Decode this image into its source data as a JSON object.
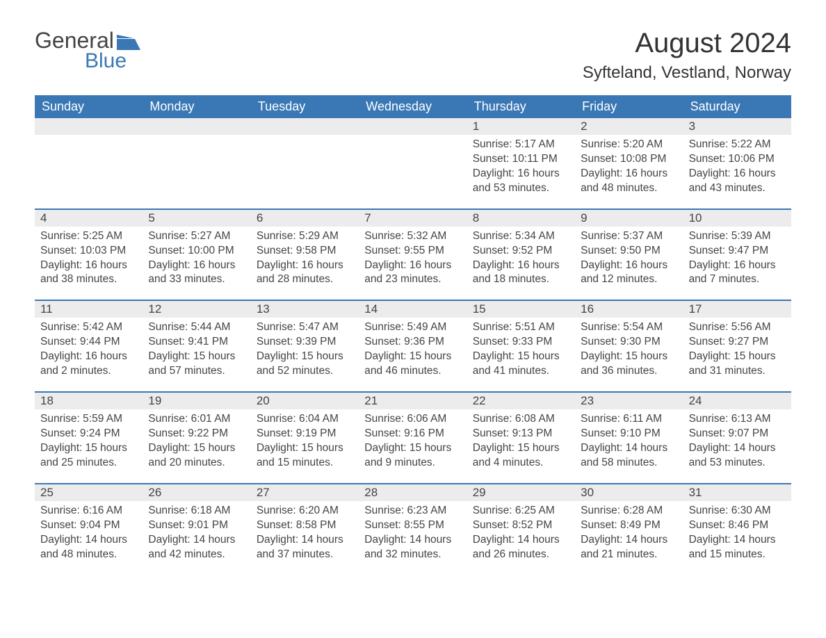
{
  "logo": {
    "text_general": "General",
    "text_blue": "Blue",
    "flag_color": "#3a78b5"
  },
  "header": {
    "month_title": "August 2024",
    "location": "Syfteland, Vestland, Norway"
  },
  "colors": {
    "header_bg": "#3a78b5",
    "daynum_bg": "#ececec",
    "text": "#444444",
    "white": "#ffffff"
  },
  "typography": {
    "month_title_fontsize": 40,
    "location_fontsize": 24,
    "weekday_fontsize": 18,
    "daynum_fontsize": 17,
    "body_fontsize": 15.5
  },
  "weekdays": [
    "Sunday",
    "Monday",
    "Tuesday",
    "Wednesday",
    "Thursday",
    "Friday",
    "Saturday"
  ],
  "weeks": [
    [
      {
        "day": "",
        "sunrise": "",
        "sunset": "",
        "daylight": ""
      },
      {
        "day": "",
        "sunrise": "",
        "sunset": "",
        "daylight": ""
      },
      {
        "day": "",
        "sunrise": "",
        "sunset": "",
        "daylight": ""
      },
      {
        "day": "",
        "sunrise": "",
        "sunset": "",
        "daylight": ""
      },
      {
        "day": "1",
        "sunrise": "Sunrise: 5:17 AM",
        "sunset": "Sunset: 10:11 PM",
        "daylight": "Daylight: 16 hours and 53 minutes."
      },
      {
        "day": "2",
        "sunrise": "Sunrise: 5:20 AM",
        "sunset": "Sunset: 10:08 PM",
        "daylight": "Daylight: 16 hours and 48 minutes."
      },
      {
        "day": "3",
        "sunrise": "Sunrise: 5:22 AM",
        "sunset": "Sunset: 10:06 PM",
        "daylight": "Daylight: 16 hours and 43 minutes."
      }
    ],
    [
      {
        "day": "4",
        "sunrise": "Sunrise: 5:25 AM",
        "sunset": "Sunset: 10:03 PM",
        "daylight": "Daylight: 16 hours and 38 minutes."
      },
      {
        "day": "5",
        "sunrise": "Sunrise: 5:27 AM",
        "sunset": "Sunset: 10:00 PM",
        "daylight": "Daylight: 16 hours and 33 minutes."
      },
      {
        "day": "6",
        "sunrise": "Sunrise: 5:29 AM",
        "sunset": "Sunset: 9:58 PM",
        "daylight": "Daylight: 16 hours and 28 minutes."
      },
      {
        "day": "7",
        "sunrise": "Sunrise: 5:32 AM",
        "sunset": "Sunset: 9:55 PM",
        "daylight": "Daylight: 16 hours and 23 minutes."
      },
      {
        "day": "8",
        "sunrise": "Sunrise: 5:34 AM",
        "sunset": "Sunset: 9:52 PM",
        "daylight": "Daylight: 16 hours and 18 minutes."
      },
      {
        "day": "9",
        "sunrise": "Sunrise: 5:37 AM",
        "sunset": "Sunset: 9:50 PM",
        "daylight": "Daylight: 16 hours and 12 minutes."
      },
      {
        "day": "10",
        "sunrise": "Sunrise: 5:39 AM",
        "sunset": "Sunset: 9:47 PM",
        "daylight": "Daylight: 16 hours and 7 minutes."
      }
    ],
    [
      {
        "day": "11",
        "sunrise": "Sunrise: 5:42 AM",
        "sunset": "Sunset: 9:44 PM",
        "daylight": "Daylight: 16 hours and 2 minutes."
      },
      {
        "day": "12",
        "sunrise": "Sunrise: 5:44 AM",
        "sunset": "Sunset: 9:41 PM",
        "daylight": "Daylight: 15 hours and 57 minutes."
      },
      {
        "day": "13",
        "sunrise": "Sunrise: 5:47 AM",
        "sunset": "Sunset: 9:39 PM",
        "daylight": "Daylight: 15 hours and 52 minutes."
      },
      {
        "day": "14",
        "sunrise": "Sunrise: 5:49 AM",
        "sunset": "Sunset: 9:36 PM",
        "daylight": "Daylight: 15 hours and 46 minutes."
      },
      {
        "day": "15",
        "sunrise": "Sunrise: 5:51 AM",
        "sunset": "Sunset: 9:33 PM",
        "daylight": "Daylight: 15 hours and 41 minutes."
      },
      {
        "day": "16",
        "sunrise": "Sunrise: 5:54 AM",
        "sunset": "Sunset: 9:30 PM",
        "daylight": "Daylight: 15 hours and 36 minutes."
      },
      {
        "day": "17",
        "sunrise": "Sunrise: 5:56 AM",
        "sunset": "Sunset: 9:27 PM",
        "daylight": "Daylight: 15 hours and 31 minutes."
      }
    ],
    [
      {
        "day": "18",
        "sunrise": "Sunrise: 5:59 AM",
        "sunset": "Sunset: 9:24 PM",
        "daylight": "Daylight: 15 hours and 25 minutes."
      },
      {
        "day": "19",
        "sunrise": "Sunrise: 6:01 AM",
        "sunset": "Sunset: 9:22 PM",
        "daylight": "Daylight: 15 hours and 20 minutes."
      },
      {
        "day": "20",
        "sunrise": "Sunrise: 6:04 AM",
        "sunset": "Sunset: 9:19 PM",
        "daylight": "Daylight: 15 hours and 15 minutes."
      },
      {
        "day": "21",
        "sunrise": "Sunrise: 6:06 AM",
        "sunset": "Sunset: 9:16 PM",
        "daylight": "Daylight: 15 hours and 9 minutes."
      },
      {
        "day": "22",
        "sunrise": "Sunrise: 6:08 AM",
        "sunset": "Sunset: 9:13 PM",
        "daylight": "Daylight: 15 hours and 4 minutes."
      },
      {
        "day": "23",
        "sunrise": "Sunrise: 6:11 AM",
        "sunset": "Sunset: 9:10 PM",
        "daylight": "Daylight: 14 hours and 58 minutes."
      },
      {
        "day": "24",
        "sunrise": "Sunrise: 6:13 AM",
        "sunset": "Sunset: 9:07 PM",
        "daylight": "Daylight: 14 hours and 53 minutes."
      }
    ],
    [
      {
        "day": "25",
        "sunrise": "Sunrise: 6:16 AM",
        "sunset": "Sunset: 9:04 PM",
        "daylight": "Daylight: 14 hours and 48 minutes."
      },
      {
        "day": "26",
        "sunrise": "Sunrise: 6:18 AM",
        "sunset": "Sunset: 9:01 PM",
        "daylight": "Daylight: 14 hours and 42 minutes."
      },
      {
        "day": "27",
        "sunrise": "Sunrise: 6:20 AM",
        "sunset": "Sunset: 8:58 PM",
        "daylight": "Daylight: 14 hours and 37 minutes."
      },
      {
        "day": "28",
        "sunrise": "Sunrise: 6:23 AM",
        "sunset": "Sunset: 8:55 PM",
        "daylight": "Daylight: 14 hours and 32 minutes."
      },
      {
        "day": "29",
        "sunrise": "Sunrise: 6:25 AM",
        "sunset": "Sunset: 8:52 PM",
        "daylight": "Daylight: 14 hours and 26 minutes."
      },
      {
        "day": "30",
        "sunrise": "Sunrise: 6:28 AM",
        "sunset": "Sunset: 8:49 PM",
        "daylight": "Daylight: 14 hours and 21 minutes."
      },
      {
        "day": "31",
        "sunrise": "Sunrise: 6:30 AM",
        "sunset": "Sunset: 8:46 PM",
        "daylight": "Daylight: 14 hours and 15 minutes."
      }
    ]
  ]
}
